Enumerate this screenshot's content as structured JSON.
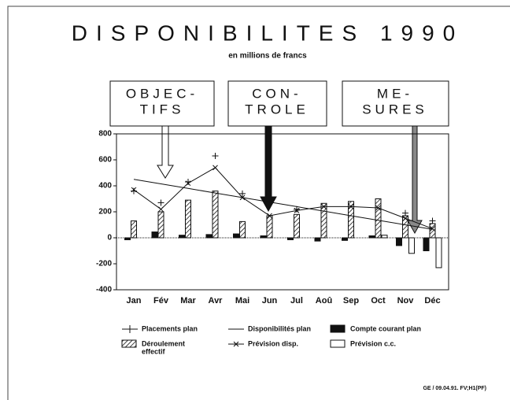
{
  "chart_data": {
    "type": "combo",
    "title": "DISPONIBILITES 1990",
    "subtitle": "en millions de francs",
    "annotations": [
      [
        "OBJEC-",
        "TIFS"
      ],
      [
        "CON-",
        "TROLE"
      ],
      [
        "ME-",
        "SURES"
      ]
    ],
    "footer": "GE / 09.04.91. FV;H1(PF)",
    "categories": [
      "Jan",
      "Fév",
      "Mar",
      "Avr",
      "Mai",
      "Jun",
      "Jul",
      "Aoû",
      "Sep",
      "Oct",
      "Nov",
      "Déc"
    ],
    "ylim": [
      -400,
      800
    ],
    "yticks": [
      -400,
      -200,
      0,
      200,
      400,
      600,
      800
    ],
    "series": [
      {
        "name": "Placements plan",
        "mark": "plus",
        "color": "#111",
        "values": [
          360,
          270,
          430,
          630,
          340,
          null,
          220,
          null,
          null,
          null,
          190,
          130
        ]
      },
      {
        "name": "Disponibilités plan",
        "mark": "line",
        "color": "#111",
        "values": [
          450,
          415,
          380,
          345,
          310,
          275,
          240,
          205,
          170,
          135,
          100,
          65
        ]
      },
      {
        "name": "Compte courant plan",
        "mark": "bar-solid",
        "color": "#111",
        "values": [
          -15,
          45,
          20,
          25,
          30,
          15,
          -15,
          -25,
          -20,
          15,
          -60,
          -100
        ]
      },
      {
        "name": [
          "Déroulement",
          "effectif"
        ],
        "mark": "bar-hatched",
        "color": "#111",
        "values": [
          130,
          200,
          290,
          360,
          125,
          170,
          180,
          265,
          280,
          300,
          170,
          110
        ]
      },
      {
        "name": "Prévision disp.",
        "mark": "line-x",
        "color": "#111",
        "values": [
          370,
          220,
          420,
          540,
          310,
          170,
          210,
          240,
          240,
          230,
          150,
          70
        ]
      },
      {
        "name": "Prévision c.c.",
        "mark": "bar-open",
        "color": "#111",
        "values": [
          null,
          null,
          null,
          null,
          null,
          null,
          null,
          null,
          null,
          20,
          -120,
          -230
        ]
      }
    ]
  }
}
